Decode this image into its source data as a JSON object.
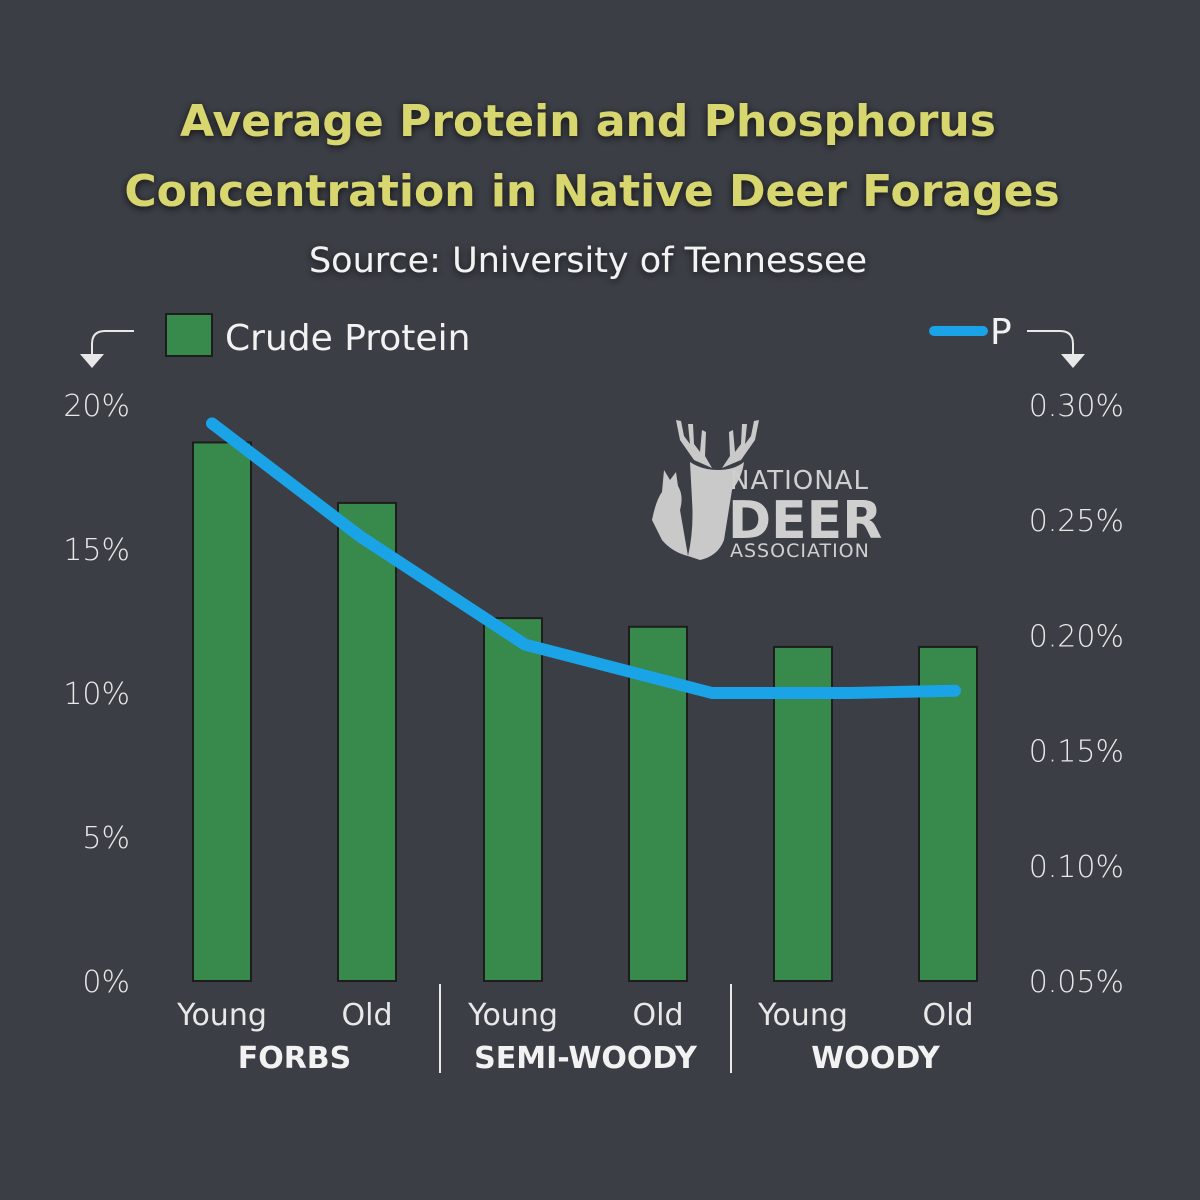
{
  "chart_data": {
    "type": "bar+line",
    "title_line1": "Average Protein and Phosphorus",
    "title_line2": "Concentration in Native Deer Forages",
    "subtitle": "Source: University of Tennessee",
    "categories": [
      "Young",
      "Old",
      "Young",
      "Old",
      "Young",
      "Old"
    ],
    "groups": [
      {
        "label": "FORBS",
        "span": [
          0,
          1
        ]
      },
      {
        "label": "SEMI-WOODY",
        "span": [
          2,
          3
        ]
      },
      {
        "label": "WOODY",
        "span": [
          4,
          5
        ]
      }
    ],
    "series": [
      {
        "name": "Crude Protein",
        "type": "bar",
        "axis": "left",
        "color": "#378a4c",
        "values": [
          18.7,
          16.6,
          12.6,
          12.3,
          11.6,
          11.6
        ]
      },
      {
        "name": "P",
        "type": "line",
        "axis": "right",
        "color": "#1ba3e8",
        "values": [
          0.292,
          0.243,
          0.196,
          0.175,
          0.175,
          0.176
        ]
      }
    ],
    "left_axis": {
      "ylim": [
        0,
        20
      ],
      "ticks": [
        "0%",
        "5%",
        "10%",
        "15%",
        "20%"
      ],
      "tick_values": [
        0,
        5,
        10,
        15,
        20
      ]
    },
    "right_axis": {
      "ylim": [
        0.05,
        0.3
      ],
      "ticks": [
        "0.05%",
        "0.10%",
        "0.15%",
        "0.20%",
        "0.25%",
        "0.30%"
      ],
      "tick_values": [
        0.05,
        0.1,
        0.15,
        0.2,
        0.25,
        0.3
      ]
    },
    "legend_placement": "top",
    "grid": false
  },
  "logo": {
    "line1": "NATIONAL",
    "line2": "DEER",
    "line3": "ASSOCIATION"
  }
}
